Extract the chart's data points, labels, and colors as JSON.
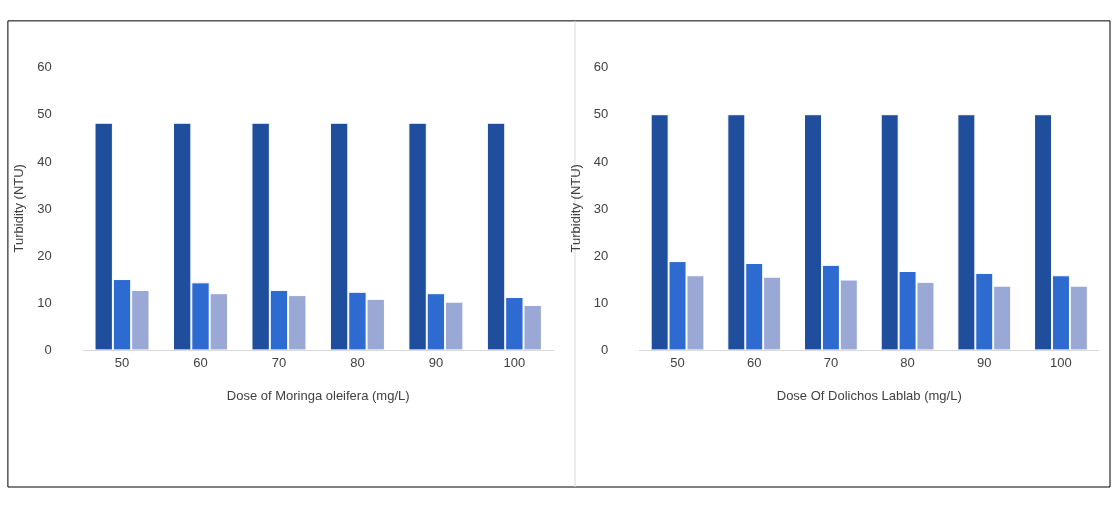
{
  "chart_data": [
    {
      "type": "bar",
      "categories": [
        "50",
        "60",
        "70",
        "80",
        "90",
        "100"
      ],
      "xlabel": "Dose of Moringa oleifera (mg/L)",
      "ylabel": "Turbidity (NTU)",
      "ylim": [
        0,
        60
      ],
      "yticks": [
        0,
        10,
        20,
        30,
        40,
        50,
        60
      ],
      "grid": false,
      "series": [
        {
          "color": "#1f4e9c",
          "values": [
            48,
            48,
            48,
            48,
            48,
            48
          ]
        },
        {
          "color": "#2e6bd0",
          "values": [
            14.9,
            14.2,
            12.6,
            12.2,
            11.9,
            11.1
          ]
        },
        {
          "color": "#9aa8d6",
          "values": [
            12.6,
            11.9,
            11.5,
            10.7,
            10.1,
            9.4
          ]
        }
      ]
    },
    {
      "type": "bar",
      "categories": [
        "50",
        "60",
        "70",
        "80",
        "90",
        "100"
      ],
      "xlabel": "Dose Of Dolichos Lablab (mg/L)",
      "ylabel": "Turbidity (NTU)",
      "ylim": [
        0,
        60
      ],
      "yticks": [
        0,
        10,
        20,
        30,
        40,
        50,
        60
      ],
      "grid": false,
      "series": [
        {
          "color": "#1f4e9c",
          "values": [
            49.8,
            49.8,
            49.8,
            49.8,
            49.8,
            49.8
          ]
        },
        {
          "color": "#2e6bd0",
          "values": [
            18.7,
            18.3,
            17.9,
            16.6,
            16.2,
            15.7
          ]
        },
        {
          "color": "#9aa8d6",
          "values": [
            15.7,
            15.4,
            14.8,
            14.3,
            13.5,
            13.5
          ]
        }
      ]
    }
  ]
}
